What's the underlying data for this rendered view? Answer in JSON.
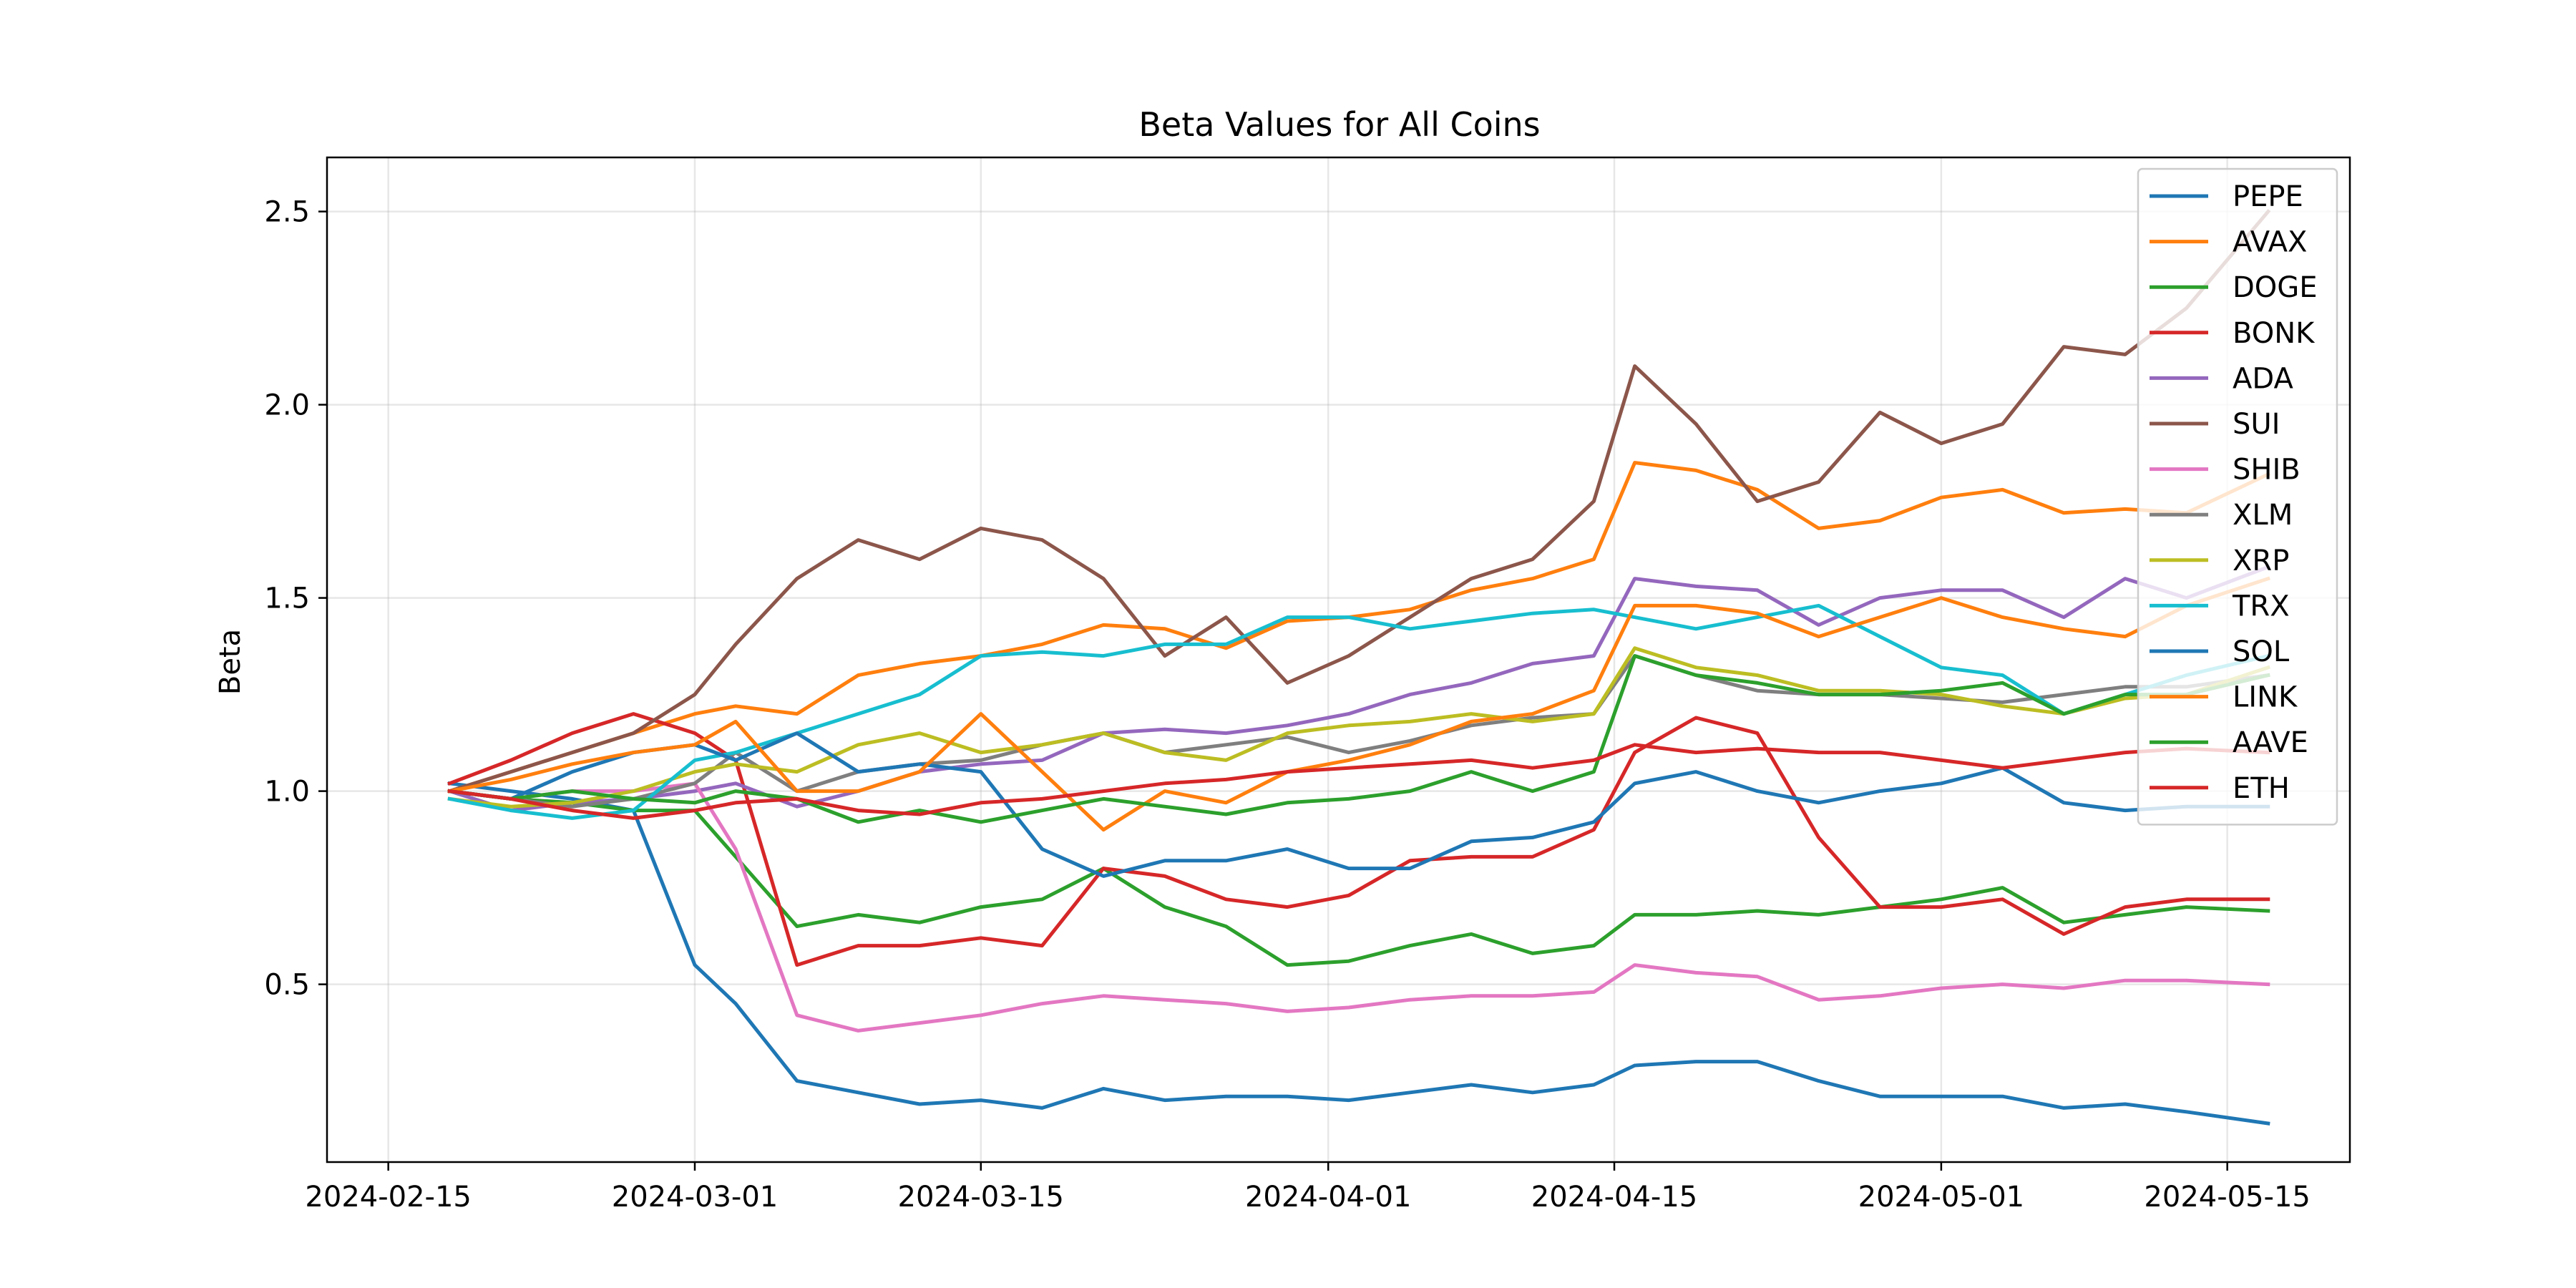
{
  "chart_data": {
    "type": "line",
    "title": "Beta Values for All Coins",
    "xlabel": "",
    "ylabel": "Beta",
    "xlim": [
      "2024-02-12",
      "2024-05-21"
    ],
    "ylim": [
      0.04,
      2.64
    ],
    "xticks": [
      "2024-02-15",
      "2024-03-01",
      "2024-03-15",
      "2024-04-01",
      "2024-04-15",
      "2024-05-01",
      "2024-05-15"
    ],
    "yticks": [
      "0.5",
      "1.0",
      "1.5",
      "2.0",
      "2.5"
    ],
    "grid": true,
    "legend_position": "top-right",
    "x": [
      "2024-02-18",
      "2024-02-21",
      "2024-02-24",
      "2024-02-27",
      "2024-03-01",
      "2024-03-03",
      "2024-03-06",
      "2024-03-09",
      "2024-03-12",
      "2024-03-15",
      "2024-03-18",
      "2024-03-21",
      "2024-03-24",
      "2024-03-27",
      "2024-03-30",
      "2024-04-02",
      "2024-04-05",
      "2024-04-08",
      "2024-04-11",
      "2024-04-14",
      "2024-04-16",
      "2024-04-19",
      "2024-04-22",
      "2024-04-25",
      "2024-04-28",
      "2024-05-01",
      "2024-05-04",
      "2024-05-07",
      "2024-05-10",
      "2024-05-13",
      "2024-05-17"
    ],
    "series": [
      {
        "name": "PEPE",
        "color": "#1f77b4",
        "values": [
          1.02,
          1.0,
          0.98,
          0.95,
          0.55,
          0.45,
          0.25,
          0.22,
          0.19,
          0.2,
          0.18,
          0.23,
          0.2,
          0.21,
          0.21,
          0.2,
          0.22,
          0.24,
          0.22,
          0.24,
          0.29,
          0.3,
          0.3,
          0.25,
          0.21,
          0.21,
          0.21,
          0.18,
          0.19,
          0.17,
          0.14
        ]
      },
      {
        "name": "AVAX",
        "color": "#ff7f0e",
        "values": [
          1.0,
          1.05,
          1.1,
          1.15,
          1.2,
          1.22,
          1.2,
          1.3,
          1.33,
          1.35,
          1.38,
          1.43,
          1.42,
          1.37,
          1.44,
          1.45,
          1.47,
          1.52,
          1.55,
          1.6,
          1.85,
          1.83,
          1.78,
          1.68,
          1.7,
          1.76,
          1.78,
          1.72,
          1.73,
          1.72,
          1.82
        ]
      },
      {
        "name": "DOGE",
        "color": "#2ca02c",
        "values": [
          1.0,
          0.98,
          0.97,
          0.95,
          0.95,
          0.83,
          0.65,
          0.68,
          0.66,
          0.7,
          0.72,
          0.8,
          0.7,
          0.65,
          0.55,
          0.56,
          0.6,
          0.63,
          0.58,
          0.6,
          0.68,
          0.68,
          0.69,
          0.68,
          0.7,
          0.72,
          0.75,
          0.66,
          0.68,
          0.7,
          0.69
        ]
      },
      {
        "name": "BONK",
        "color": "#d62728",
        "values": [
          1.02,
          1.08,
          1.15,
          1.2,
          1.15,
          1.08,
          0.55,
          0.6,
          0.6,
          0.62,
          0.6,
          0.8,
          0.78,
          0.72,
          0.7,
          0.73,
          0.82,
          0.83,
          0.83,
          0.9,
          1.1,
          1.19,
          1.15,
          0.88,
          0.7,
          0.7,
          0.72,
          0.63,
          0.7,
          0.72,
          0.72
        ]
      },
      {
        "name": "ADA",
        "color": "#9467bd",
        "values": [
          1.0,
          0.95,
          0.97,
          0.98,
          1.0,
          1.02,
          0.96,
          1.0,
          1.05,
          1.07,
          1.08,
          1.15,
          1.16,
          1.15,
          1.17,
          1.2,
          1.25,
          1.28,
          1.33,
          1.35,
          1.55,
          1.53,
          1.52,
          1.43,
          1.5,
          1.52,
          1.52,
          1.45,
          1.55,
          1.5,
          1.58
        ]
      },
      {
        "name": "SUI",
        "color": "#8c564b",
        "values": [
          1.0,
          1.05,
          1.1,
          1.15,
          1.25,
          1.38,
          1.55,
          1.65,
          1.6,
          1.68,
          1.65,
          1.55,
          1.35,
          1.45,
          1.28,
          1.35,
          1.45,
          1.55,
          1.6,
          1.75,
          2.1,
          1.95,
          1.75,
          1.8,
          1.98,
          1.9,
          1.95,
          2.15,
          2.13,
          2.25,
          2.5
        ]
      },
      {
        "name": "SHIB",
        "color": "#e377c2",
        "values": [
          1.0,
          0.98,
          1.0,
          1.0,
          1.02,
          0.85,
          0.42,
          0.38,
          0.4,
          0.42,
          0.45,
          0.47,
          0.46,
          0.45,
          0.43,
          0.44,
          0.46,
          0.47,
          0.47,
          0.48,
          0.55,
          0.53,
          0.52,
          0.46,
          0.47,
          0.49,
          0.5,
          0.49,
          0.51,
          0.51,
          0.5
        ]
      },
      {
        "name": "XLM",
        "color": "#7f7f7f",
        "values": [
          1.0,
          0.98,
          0.96,
          0.98,
          1.02,
          1.1,
          1.0,
          1.05,
          1.07,
          1.08,
          1.12,
          1.15,
          1.1,
          1.12,
          1.14,
          1.1,
          1.13,
          1.17,
          1.19,
          1.2,
          1.35,
          1.3,
          1.26,
          1.25,
          1.25,
          1.24,
          1.23,
          1.25,
          1.27,
          1.27,
          1.3
        ]
      },
      {
        "name": "XRP",
        "color": "#bcbd22",
        "values": [
          0.98,
          0.96,
          0.97,
          1.0,
          1.05,
          1.07,
          1.05,
          1.12,
          1.15,
          1.1,
          1.12,
          1.15,
          1.1,
          1.08,
          1.15,
          1.17,
          1.18,
          1.2,
          1.18,
          1.2,
          1.37,
          1.32,
          1.3,
          1.26,
          1.26,
          1.25,
          1.22,
          1.2,
          1.24,
          1.25,
          1.32
        ]
      },
      {
        "name": "TRX",
        "color": "#17becf",
        "values": [
          0.98,
          0.95,
          0.93,
          0.95,
          1.08,
          1.1,
          1.15,
          1.2,
          1.25,
          1.35,
          1.36,
          1.35,
          1.38,
          1.38,
          1.45,
          1.45,
          1.42,
          1.44,
          1.46,
          1.47,
          1.45,
          1.42,
          1.45,
          1.48,
          1.4,
          1.32,
          1.3,
          1.2,
          1.25,
          1.3,
          1.35
        ]
      },
      {
        "name": "SOL",
        "color": "#1f77b4",
        "values": [
          1.0,
          0.98,
          1.05,
          1.1,
          1.12,
          1.08,
          1.15,
          1.05,
          1.07,
          1.05,
          0.85,
          0.78,
          0.82,
          0.82,
          0.85,
          0.8,
          0.8,
          0.87,
          0.88,
          0.92,
          1.02,
          1.05,
          1.0,
          0.97,
          1.0,
          1.02,
          1.06,
          0.97,
          0.95,
          0.96,
          0.96
        ]
      },
      {
        "name": "LINK",
        "color": "#ff7f0e",
        "values": [
          1.0,
          1.03,
          1.07,
          1.1,
          1.12,
          1.18,
          1.0,
          1.0,
          1.05,
          1.2,
          1.05,
          0.9,
          1.0,
          0.97,
          1.05,
          1.08,
          1.12,
          1.18,
          1.2,
          1.26,
          1.48,
          1.48,
          1.46,
          1.4,
          1.45,
          1.5,
          1.45,
          1.42,
          1.4,
          1.48,
          1.55
        ]
      },
      {
        "name": "AAVE",
        "color": "#2ca02c",
        "values": [
          1.0,
          0.98,
          1.0,
          0.98,
          0.97,
          1.0,
          0.98,
          0.92,
          0.95,
          0.92,
          0.95,
          0.98,
          0.96,
          0.94,
          0.97,
          0.98,
          1.0,
          1.05,
          1.0,
          1.05,
          1.35,
          1.3,
          1.28,
          1.25,
          1.25,
          1.26,
          1.28,
          1.2,
          1.25,
          1.25,
          1.3
        ]
      },
      {
        "name": "ETH",
        "color": "#d62728",
        "values": [
          1.0,
          0.98,
          0.95,
          0.93,
          0.95,
          0.97,
          0.98,
          0.95,
          0.94,
          0.97,
          0.98,
          1.0,
          1.02,
          1.03,
          1.05,
          1.06,
          1.07,
          1.08,
          1.06,
          1.08,
          1.12,
          1.1,
          1.11,
          1.1,
          1.1,
          1.08,
          1.06,
          1.08,
          1.1,
          1.11,
          1.1
        ]
      }
    ]
  }
}
